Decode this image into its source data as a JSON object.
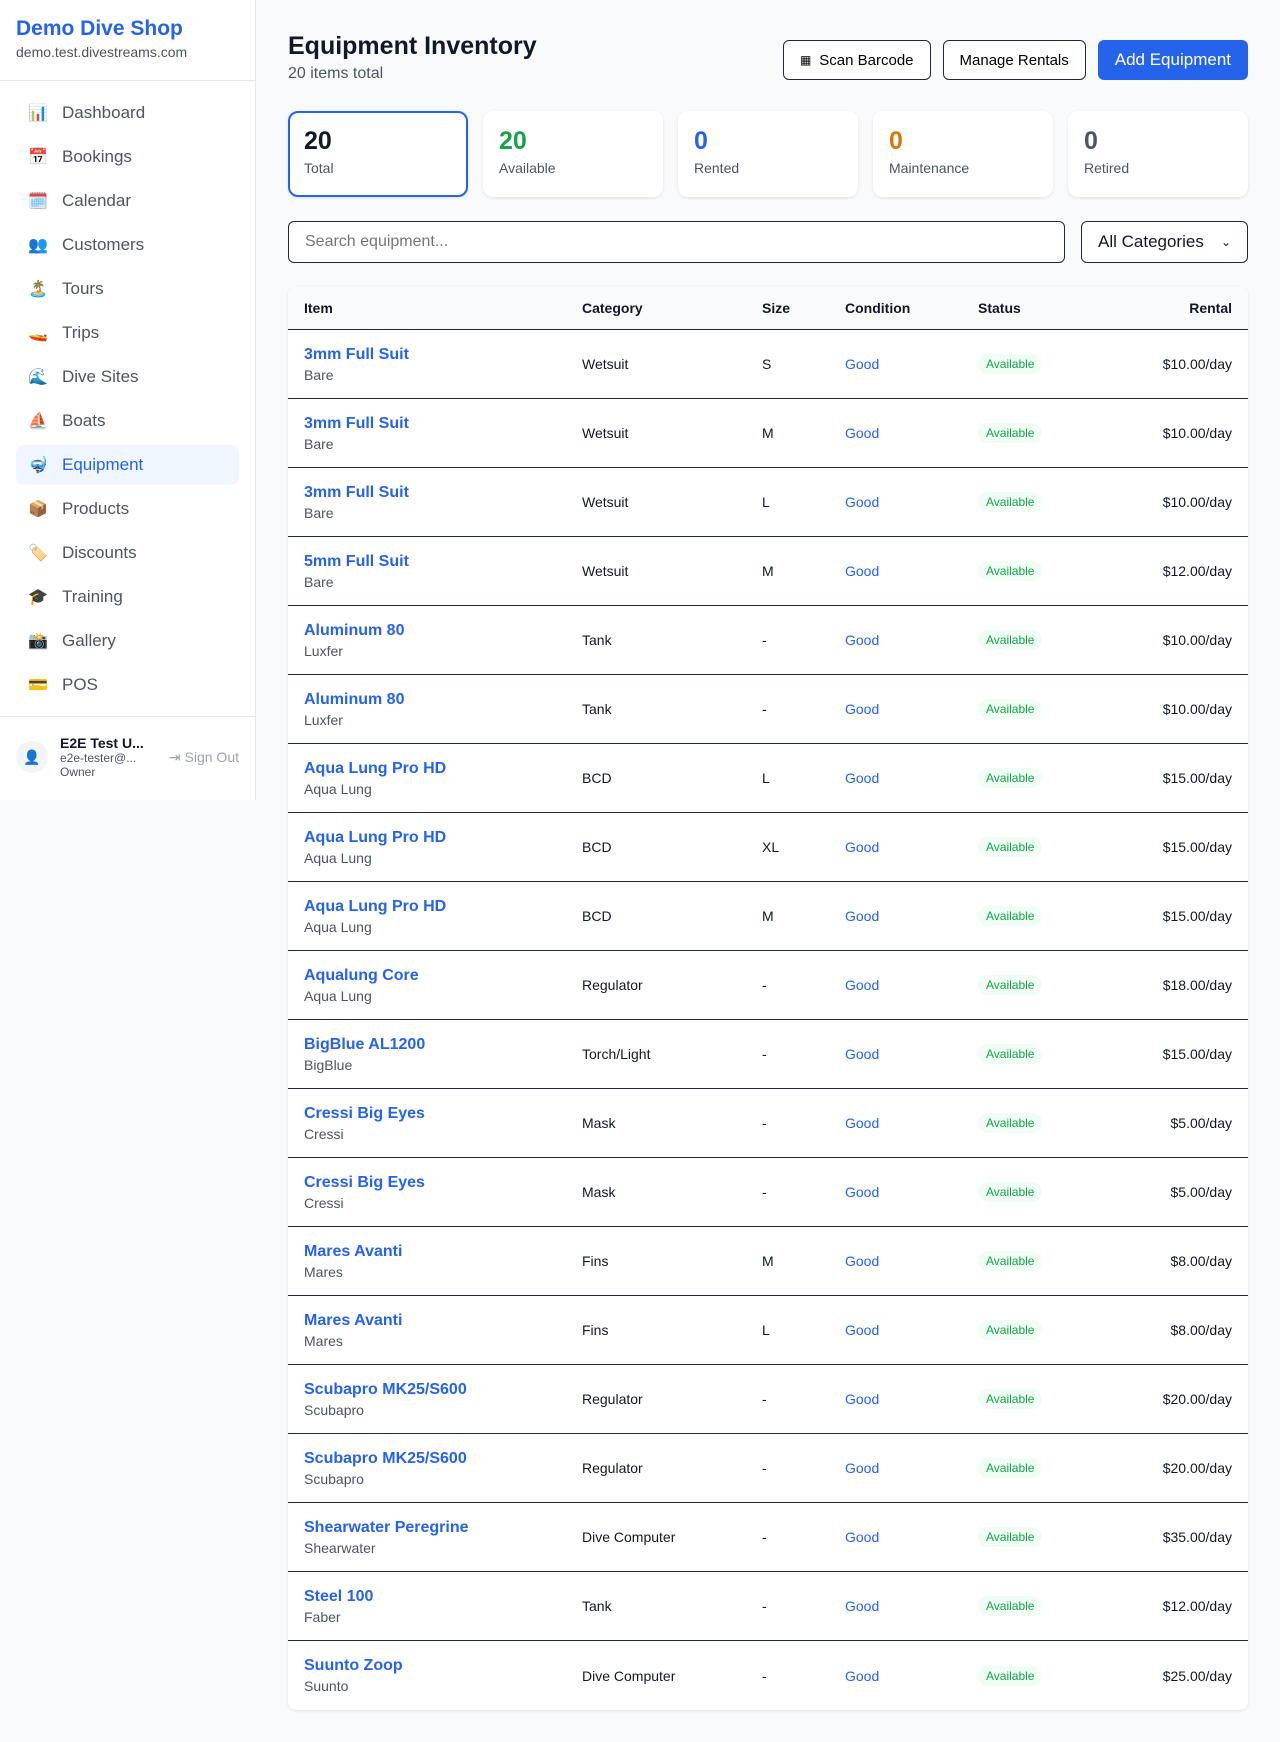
{
  "sidebar": {
    "shop_name": "Demo Dive Shop",
    "domain": "demo.test.divestreams.com",
    "items": [
      {
        "label": "Dashboard",
        "icon": "📊"
      },
      {
        "label": "Bookings",
        "icon": "📅"
      },
      {
        "label": "Calendar",
        "icon": "🗓️"
      },
      {
        "label": "Customers",
        "icon": "👥"
      },
      {
        "label": "Tours",
        "icon": "🏝️"
      },
      {
        "label": "Trips",
        "icon": "🚤"
      },
      {
        "label": "Dive Sites",
        "icon": "🌊"
      },
      {
        "label": "Boats",
        "icon": "⛵"
      },
      {
        "label": "Equipment",
        "icon": "🤿",
        "active": true
      },
      {
        "label": "Products",
        "icon": "📦"
      },
      {
        "label": "Discounts",
        "icon": "🏷️"
      },
      {
        "label": "Training",
        "icon": "🎓"
      },
      {
        "label": "Gallery",
        "icon": "📸"
      },
      {
        "label": "POS",
        "icon": "💳"
      }
    ],
    "user": {
      "name": "E2E Test U...",
      "email": "e2e-tester@...",
      "role": "Owner",
      "sign_out": "Sign Out"
    }
  },
  "header": {
    "title": "Equipment Inventory",
    "subtitle": "20 items total",
    "scan_barcode": "Scan Barcode",
    "manage_rentals": "Manage Rentals",
    "add_equipment": "Add Equipment"
  },
  "stats": [
    {
      "value": "20",
      "label": "Total",
      "color": "#111827"
    },
    {
      "value": "20",
      "label": "Available",
      "color": "#16a34a"
    },
    {
      "value": "0",
      "label": "Rented",
      "color": "#2563eb"
    },
    {
      "value": "0",
      "label": "Maintenance",
      "color": "#d97706"
    },
    {
      "value": "0",
      "label": "Retired",
      "color": "#4b5563"
    }
  ],
  "filters": {
    "search_placeholder": "Search equipment...",
    "category": "All Categories"
  },
  "table": {
    "columns": [
      "Item",
      "Category",
      "Size",
      "Condition",
      "Status",
      "Rental"
    ],
    "rows": [
      [
        "3mm Full Suit",
        "Bare",
        "Wetsuit",
        "S",
        "Good",
        "Available",
        "$10.00/day"
      ],
      [
        "3mm Full Suit",
        "Bare",
        "Wetsuit",
        "M",
        "Good",
        "Available",
        "$10.00/day"
      ],
      [
        "3mm Full Suit",
        "Bare",
        "Wetsuit",
        "L",
        "Good",
        "Available",
        "$10.00/day"
      ],
      [
        "5mm Full Suit",
        "Bare",
        "Wetsuit",
        "M",
        "Good",
        "Available",
        "$12.00/day"
      ],
      [
        "Aluminum 80",
        "Luxfer",
        "Tank",
        "-",
        "Good",
        "Available",
        "$10.00/day"
      ],
      [
        "Aluminum 80",
        "Luxfer",
        "Tank",
        "-",
        "Good",
        "Available",
        "$10.00/day"
      ],
      [
        "Aqua Lung Pro HD",
        "Aqua Lung",
        "BCD",
        "L",
        "Good",
        "Available",
        "$15.00/day"
      ],
      [
        "Aqua Lung Pro HD",
        "Aqua Lung",
        "BCD",
        "XL",
        "Good",
        "Available",
        "$15.00/day"
      ],
      [
        "Aqua Lung Pro HD",
        "Aqua Lung",
        "BCD",
        "M",
        "Good",
        "Available",
        "$15.00/day"
      ],
      [
        "Aqualung Core",
        "Aqua Lung",
        "Regulator",
        "-",
        "Good",
        "Available",
        "$18.00/day"
      ],
      [
        "BigBlue AL1200",
        "BigBlue",
        "Torch/Light",
        "-",
        "Good",
        "Available",
        "$15.00/day"
      ],
      [
        "Cressi Big Eyes",
        "Cressi",
        "Mask",
        "-",
        "Good",
        "Available",
        "$5.00/day"
      ],
      [
        "Cressi Big Eyes",
        "Cressi",
        "Mask",
        "-",
        "Good",
        "Available",
        "$5.00/day"
      ],
      [
        "Mares Avanti",
        "Mares",
        "Fins",
        "M",
        "Good",
        "Available",
        "$8.00/day"
      ],
      [
        "Mares Avanti",
        "Mares",
        "Fins",
        "L",
        "Good",
        "Available",
        "$8.00/day"
      ],
      [
        "Scubapro MK25/S600",
        "Scubapro",
        "Regulator",
        "-",
        "Good",
        "Available",
        "$20.00/day"
      ],
      [
        "Scubapro MK25/S600",
        "Scubapro",
        "Regulator",
        "-",
        "Good",
        "Available",
        "$20.00/day"
      ],
      [
        "Shearwater Peregrine",
        "Shearwater",
        "Dive Computer",
        "-",
        "Good",
        "Available",
        "$35.00/day"
      ],
      [
        "Steel 100",
        "Faber",
        "Tank",
        "-",
        "Good",
        "Available",
        "$12.00/day"
      ],
      [
        "Suunto Zoop",
        "Suunto",
        "Dive Computer",
        "-",
        "Good",
        "Available",
        "$25.00/day"
      ]
    ]
  }
}
